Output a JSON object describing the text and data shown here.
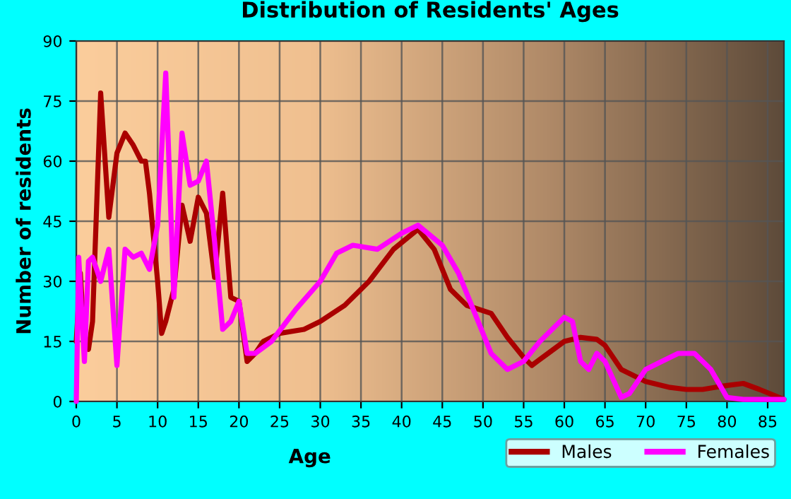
{
  "chart_data": {
    "type": "line",
    "title": "Distribution of Residents' Ages",
    "xlabel": "Age",
    "ylabel": "Number of residents",
    "xlim": [
      0,
      87
    ],
    "xticks": [
      0,
      5,
      10,
      15,
      20,
      25,
      30,
      35,
      40,
      45,
      50,
      55,
      60,
      65,
      70,
      75,
      80,
      85
    ],
    "ylim": [
      0,
      90
    ],
    "yticks": [
      0,
      15,
      30,
      45,
      60,
      75,
      90
    ],
    "grid": true,
    "legend": "bottom right",
    "marker": "none",
    "line_style": "solid",
    "series": [
      {
        "name": "Males",
        "color": "#aa0000",
        "x": [
          0,
          0.5,
          1,
          1.5,
          2,
          3,
          4,
          5,
          6,
          7,
          8,
          8.5,
          9,
          10,
          10.5,
          11,
          12,
          13,
          14,
          15,
          16,
          17,
          18,
          19,
          20,
          21,
          22,
          23,
          25,
          28,
          30,
          33,
          36,
          39,
          42,
          44,
          46,
          48,
          51,
          53,
          55,
          56,
          58,
          60,
          62,
          64,
          65,
          67,
          70,
          73,
          75,
          77,
          80,
          82,
          84,
          87
        ],
        "values": [
          15,
          32,
          15,
          13,
          20,
          77,
          46,
          62,
          67,
          64,
          60,
          60,
          52,
          30,
          17,
          20,
          28,
          49,
          40,
          51,
          47,
          31,
          52,
          26,
          25,
          10,
          12,
          15,
          17,
          18,
          20,
          24,
          30,
          38,
          43,
          38,
          28,
          24,
          22,
          16,
          11,
          9,
          12,
          15,
          16,
          15.5,
          14,
          8,
          5,
          3.5,
          3,
          3,
          4,
          4.5,
          3,
          0.5
        ]
      },
      {
        "name": "Females",
        "color": "#ff00ff",
        "x": [
          0,
          0.3,
          1,
          1.5,
          2,
          3,
          4,
          5,
          6,
          7,
          8,
          9,
          10,
          11,
          12,
          13,
          14,
          15,
          16,
          17,
          18,
          19,
          20,
          21,
          22,
          24,
          27,
          30,
          32,
          34,
          37,
          40,
          42,
          45,
          47,
          49,
          51,
          53,
          55,
          57,
          60,
          61,
          62,
          63,
          64,
          65,
          67,
          68,
          70,
          72,
          74,
          76,
          78,
          80,
          82,
          87
        ],
        "values": [
          0,
          36,
          10,
          35,
          36,
          30,
          38,
          9,
          38,
          36,
          37,
          33,
          44,
          82,
          26,
          67,
          54,
          55,
          60,
          40,
          18,
          20,
          25,
          12,
          12,
          15,
          23,
          30,
          37,
          39,
          38,
          42,
          44,
          39,
          32,
          22,
          12,
          8,
          10,
          15,
          21,
          20,
          10,
          8,
          12,
          10,
          1,
          2,
          8,
          10,
          12,
          12,
          8,
          1,
          0.5,
          0.5
        ]
      }
    ]
  }
}
